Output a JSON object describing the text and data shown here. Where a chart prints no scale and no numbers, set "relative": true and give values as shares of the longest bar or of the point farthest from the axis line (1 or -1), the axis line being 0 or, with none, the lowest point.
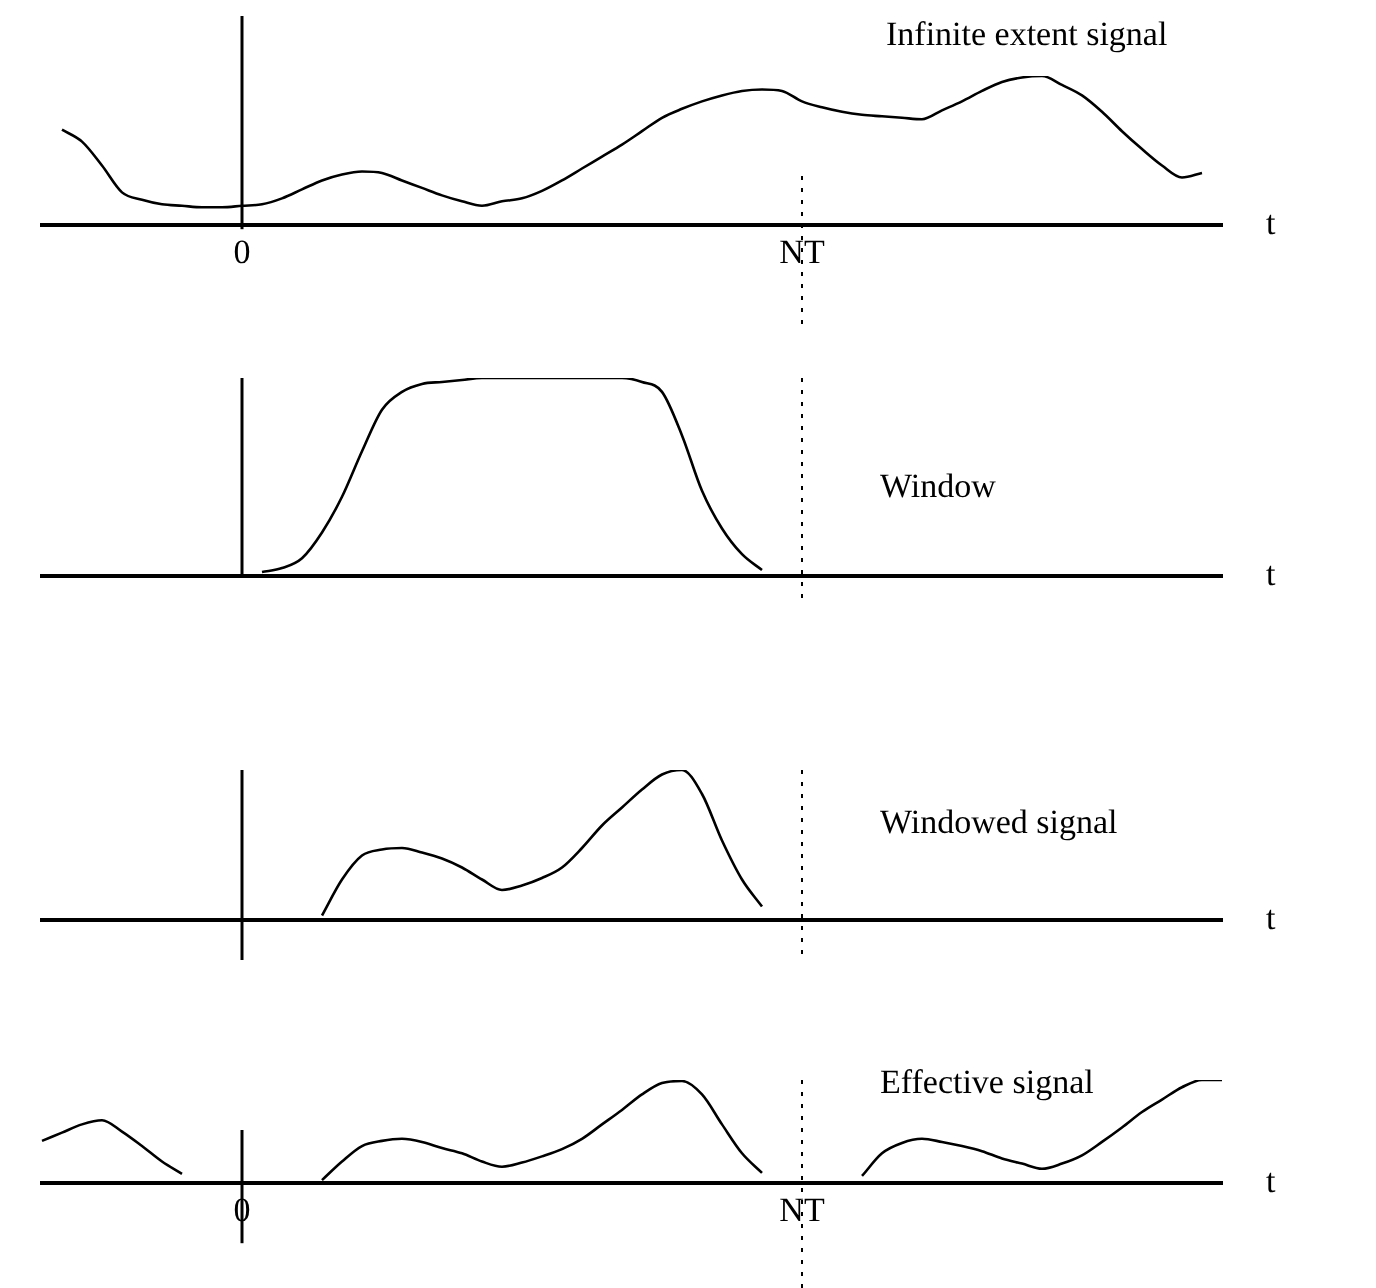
{
  "chart_data": [
    {
      "type": "line",
      "title": "Infinite extent signal",
      "xlabel": "t",
      "relative": true,
      "color": "#000000",
      "tick_labels": "x",
      "ref_lines": [
        {
          "axis": "x",
          "value": "NT",
          "line_style": "dotted"
        },
        {
          "axis": "x",
          "value": "0",
          "line_style": "solid"
        }
      ],
      "categories": [
        null,
        null,
        null,
        null,
        null,
        null,
        null,
        null,
        null,
        null,
        "0",
        null,
        null,
        null,
        null,
        null,
        null,
        null,
        null,
        null,
        null,
        null,
        null,
        null,
        null,
        null,
        null,
        null,
        null,
        null,
        null,
        null,
        null,
        null,
        null,
        null,
        null,
        null,
        "NT",
        null,
        null,
        null,
        null,
        null,
        null,
        null,
        null,
        null,
        null,
        null,
        null,
        null,
        null,
        null,
        null,
        null,
        null,
        null,
        null,
        null
      ],
      "values": [
        null,
        0.64,
        0.56,
        0.4,
        0.22,
        0.17,
        0.14,
        0.13,
        0.12,
        0.12,
        0.13,
        0.14,
        0.18,
        0.24,
        0.3,
        0.34,
        0.36,
        0.35,
        0.3,
        0.25,
        0.2,
        0.16,
        0.13,
        0.16,
        0.18,
        0.23,
        0.3,
        0.38,
        0.46,
        0.54,
        0.63,
        0.72,
        0.78,
        0.83,
        0.87,
        0.9,
        0.91,
        0.9,
        0.83,
        0.79,
        0.76,
        0.74,
        0.73,
        0.72,
        0.71,
        0.77,
        0.83,
        0.9,
        0.96,
        0.99,
        1,
        0.94,
        0.87,
        0.76,
        0.63,
        0.51,
        0.4,
        0.32,
        0.35,
        null
      ]
    },
    {
      "type": "line",
      "title": "Window",
      "xlabel": "t",
      "relative": true,
      "color": "#000000",
      "tick_labels": false,
      "ref_lines": [
        {
          "axis": "x",
          "value": "NT",
          "line_style": "dotted"
        },
        {
          "axis": "x",
          "value": "0",
          "line_style": "solid"
        }
      ],
      "categories": [
        null,
        null,
        null,
        null,
        null,
        null,
        null,
        null,
        null,
        null,
        "0",
        null,
        null,
        null,
        null,
        null,
        null,
        null,
        null,
        null,
        null,
        null,
        null,
        null,
        null,
        null,
        null,
        null,
        null,
        null,
        null,
        null,
        null,
        null,
        null,
        null,
        null,
        null,
        "NT",
        null,
        null,
        null,
        null,
        null,
        null,
        null,
        null,
        null,
        null,
        null,
        null,
        null,
        null,
        null,
        null,
        null,
        null,
        null,
        null,
        null
      ],
      "values": [
        null,
        null,
        null,
        null,
        null,
        null,
        null,
        null,
        null,
        null,
        null,
        0.02,
        0.04,
        0.09,
        0.22,
        0.4,
        0.63,
        0.84,
        0.93,
        0.97,
        0.98,
        0.99,
        1,
        1,
        1,
        1,
        1,
        1,
        1,
        1,
        0.98,
        0.93,
        0.71,
        0.43,
        0.24,
        0.11,
        0.03,
        null,
        null,
        null,
        null,
        null,
        null,
        null,
        null,
        null,
        null,
        null,
        null,
        null,
        null,
        null,
        null,
        null,
        null,
        null,
        null,
        null,
        null,
        null
      ]
    },
    {
      "type": "line",
      "title": "Windowed signal",
      "xlabel": "t",
      "relative": true,
      "color": "#000000",
      "tick_labels": false,
      "ref_lines": [
        {
          "axis": "x",
          "value": "NT",
          "line_style": "dotted"
        },
        {
          "axis": "x",
          "value": "0",
          "line_style": "solid"
        }
      ],
      "categories": [
        null,
        null,
        null,
        null,
        null,
        null,
        null,
        null,
        null,
        null,
        "0",
        null,
        null,
        null,
        null,
        null,
        null,
        null,
        null,
        null,
        null,
        null,
        null,
        null,
        null,
        null,
        null,
        null,
        null,
        null,
        null,
        null,
        null,
        null,
        null,
        null,
        null,
        null,
        "NT",
        null,
        null,
        null,
        null,
        null,
        null,
        null,
        null,
        null,
        null,
        null,
        null,
        null,
        null,
        null,
        null,
        null,
        null,
        null,
        null,
        null
      ],
      "values": [
        null,
        null,
        null,
        null,
        null,
        null,
        null,
        null,
        null,
        null,
        null,
        null,
        null,
        null,
        0.03,
        0.27,
        0.43,
        0.47,
        0.48,
        0.45,
        0.41,
        0.35,
        0.27,
        0.2,
        0.23,
        0.28,
        0.35,
        0.48,
        0.63,
        0.75,
        0.87,
        0.97,
        1,
        0.84,
        0.53,
        0.27,
        0.09,
        null,
        null,
        null,
        null,
        null,
        null,
        null,
        null,
        null,
        null,
        null,
        null,
        null,
        null,
        null,
        null,
        null,
        null,
        null,
        null,
        null,
        null,
        null
      ]
    },
    {
      "type": "line",
      "title": "Effective signal",
      "xlabel": "t",
      "relative": true,
      "color": "#000000",
      "tick_labels": "x",
      "ref_lines": [
        {
          "axis": "x",
          "value": "NT",
          "line_style": "dotted"
        },
        {
          "axis": "x",
          "value": "0",
          "line_style": "solid"
        }
      ],
      "categories": [
        null,
        null,
        null,
        null,
        null,
        null,
        null,
        null,
        null,
        null,
        "0",
        null,
        null,
        null,
        null,
        null,
        null,
        null,
        null,
        null,
        null,
        null,
        null,
        null,
        null,
        null,
        null,
        null,
        null,
        null,
        null,
        null,
        null,
        null,
        null,
        null,
        null,
        null,
        "NT",
        null,
        null,
        null,
        null,
        null,
        null,
        null,
        null,
        null,
        null,
        null,
        null,
        null,
        null,
        null,
        null,
        null,
        null,
        null,
        null,
        null
      ],
      "values": [
        0.41,
        0.49,
        0.57,
        0.61,
        0.5,
        0.36,
        0.21,
        0.09,
        null,
        null,
        null,
        null,
        null,
        null,
        0.03,
        0.21,
        0.36,
        0.41,
        0.43,
        0.4,
        0.34,
        0.29,
        0.21,
        0.16,
        0.2,
        0.26,
        0.33,
        0.43,
        0.57,
        0.71,
        0.86,
        0.97,
        0.99,
        0.86,
        0.57,
        0.29,
        0.1,
        null,
        null,
        null,
        null,
        0.07,
        0.29,
        0.39,
        0.43,
        0.4,
        0.36,
        0.31,
        0.24,
        0.19,
        0.14,
        0.19,
        0.27,
        0.4,
        0.54,
        0.69,
        0.81,
        0.93,
        1,
        1
      ]
    }
  ]
}
